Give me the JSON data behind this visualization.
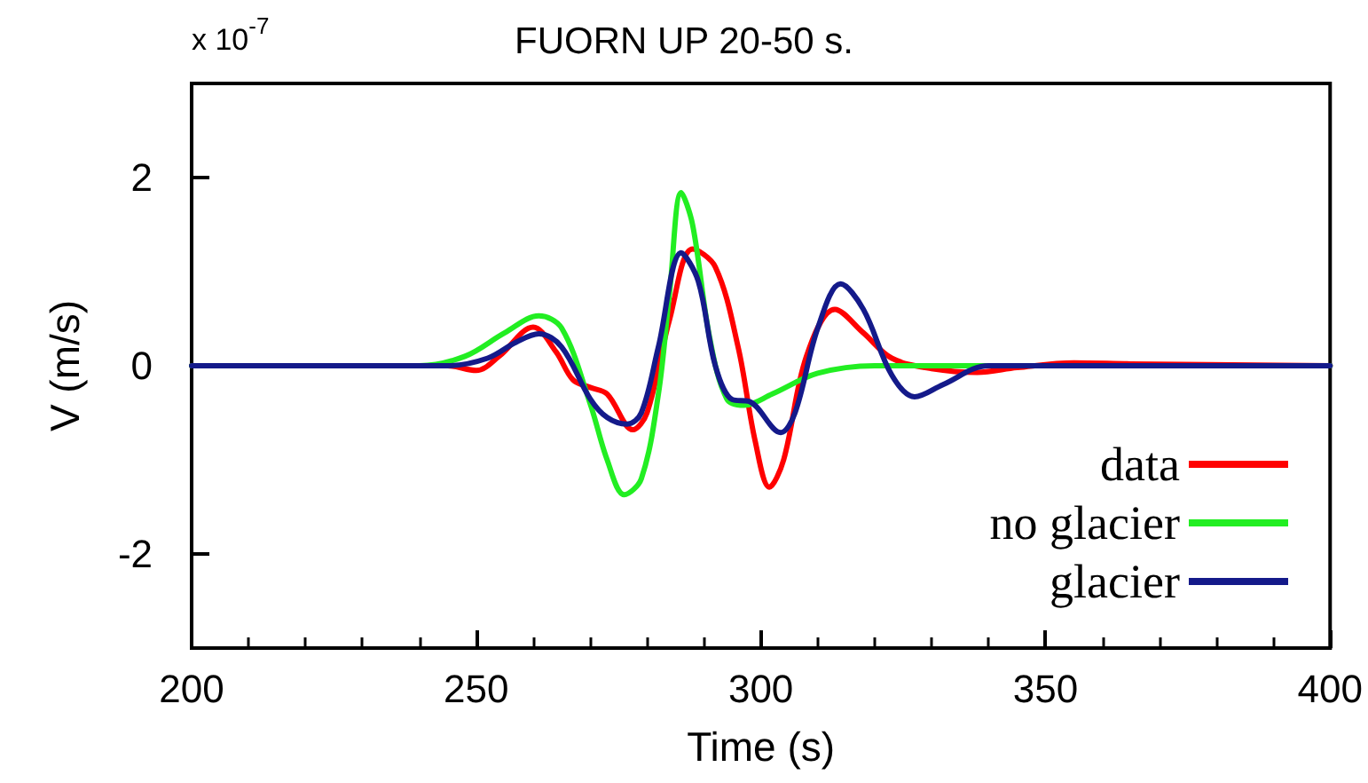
{
  "chart_data": {
    "type": "line",
    "title": "FUORN UP 20-50 s.",
    "xlabel": "Time (s)",
    "ylabel": "V (m/s)",
    "annotations": [
      "x 10$^{-7}$"
    ],
    "xlim": [
      200,
      400
    ],
    "xticks": [
      200,
      250,
      300,
      350,
      400
    ],
    "ylim": [
      -3,
      3
    ],
    "yticks": [
      -2,
      0,
      2
    ],
    "grid": false,
    "legend": "bottom right",
    "line_style": "solid",
    "marker": "none",
    "series": [
      {
        "name": "data",
        "color": "#ff0000",
        "x": [
          200,
          245,
          250,
          254,
          260,
          264,
          267,
          270,
          273,
          277.5,
          280,
          284,
          288,
          292,
          296,
          299,
          301.5,
          304,
          308,
          313,
          318,
          323,
          330,
          338,
          345,
          355,
          365,
          400
        ],
        "values": [
          0,
          0,
          -0.05,
          0.1,
          0.41,
          0.15,
          -0.15,
          -0.23,
          -0.3,
          -0.68,
          -0.5,
          0.5,
          1.24,
          1.05,
          0.2,
          -0.8,
          -1.29,
          -1.0,
          0.1,
          0.6,
          0.35,
          0.08,
          -0.03,
          -0.07,
          -0.02,
          0.03,
          0.02,
          0
        ]
      },
      {
        "name": "no glacier",
        "color": "#22ee22",
        "x": [
          200,
          240,
          248,
          255,
          261,
          265,
          270,
          273,
          276,
          279,
          282,
          284,
          286,
          288,
          291,
          294,
          297,
          302,
          310,
          320,
          400
        ],
        "values": [
          0,
          0,
          0.1,
          0.35,
          0.53,
          0.4,
          -0.4,
          -1.0,
          -1.37,
          -1.2,
          -0.3,
          0.8,
          1.84,
          1.5,
          0.3,
          -0.35,
          -0.42,
          -0.3,
          -0.08,
          0,
          0
        ]
      },
      {
        "name": "glacier",
        "color": "#141a8a",
        "x": [
          200,
          245,
          252,
          257,
          261,
          265,
          270,
          273,
          276.5,
          279,
          282,
          286,
          289,
          292,
          295,
          298,
          303.5,
          306,
          310,
          314,
          318,
          323,
          327,
          332,
          340,
          400
        ],
        "values": [
          0,
          0,
          0.08,
          0.25,
          0.34,
          0.2,
          -0.35,
          -0.55,
          -0.62,
          -0.5,
          0.2,
          1.2,
          0.9,
          0,
          -0.36,
          -0.38,
          -0.71,
          -0.5,
          0.4,
          0.87,
          0.6,
          -0.1,
          -0.33,
          -0.2,
          0,
          0
        ]
      }
    ]
  }
}
